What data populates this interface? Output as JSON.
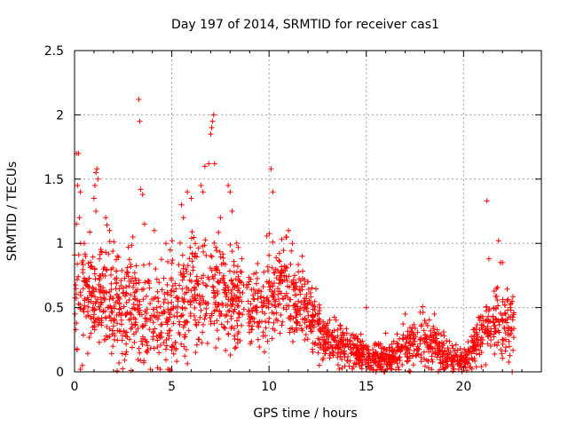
{
  "chart_data": {
    "type": "scatter",
    "title": "Day 197 of 2014, SRMTID for receiver cas1",
    "xlabel": "GPS time / hours",
    "ylabel": "SRMTID / TECUs",
    "xlim": [
      0,
      24
    ],
    "ylim": [
      0,
      2.5
    ],
    "x_ticks": [
      0,
      5,
      10,
      15,
      20
    ],
    "x_tick_labels": [
      "0",
      "5",
      "10",
      "15",
      "20"
    ],
    "y_ticks": [
      0,
      0.5,
      1,
      1.5,
      2,
      2.5
    ],
    "y_tick_labels": [
      "0",
      "0.5",
      "1",
      "1.5",
      "2",
      "2.5"
    ],
    "grid": true,
    "marker": "+",
    "color": "#ff0000",
    "series": [
      {
        "name": "cas1",
        "note": "approximate envelope of the dense point cloud: [hour, typical SRMTID, spread]",
        "envelope": [
          [
            0.0,
            0.55,
            0.45
          ],
          [
            1.0,
            0.6,
            0.45
          ],
          [
            2.0,
            0.55,
            0.45
          ],
          [
            3.0,
            0.5,
            0.45
          ],
          [
            4.0,
            0.4,
            0.4
          ],
          [
            5.0,
            0.5,
            0.45
          ],
          [
            6.0,
            0.6,
            0.5
          ],
          [
            7.0,
            0.65,
            0.5
          ],
          [
            8.0,
            0.55,
            0.4
          ],
          [
            9.0,
            0.5,
            0.35
          ],
          [
            10.0,
            0.6,
            0.4
          ],
          [
            11.0,
            0.55,
            0.4
          ],
          [
            12.0,
            0.45,
            0.3
          ],
          [
            13.0,
            0.25,
            0.2
          ],
          [
            14.0,
            0.2,
            0.18
          ],
          [
            15.0,
            0.12,
            0.12
          ],
          [
            16.0,
            0.1,
            0.1
          ],
          [
            17.0,
            0.18,
            0.18
          ],
          [
            18.0,
            0.25,
            0.22
          ],
          [
            19.0,
            0.15,
            0.15
          ],
          [
            20.0,
            0.08,
            0.08
          ],
          [
            21.0,
            0.3,
            0.25
          ],
          [
            22.0,
            0.4,
            0.3
          ],
          [
            22.5,
            0.35,
            0.25
          ]
        ],
        "points": [
          [
            0.1,
            1.7
          ],
          [
            0.2,
            1.7
          ],
          [
            0.15,
            1.45
          ],
          [
            0.3,
            1.4
          ],
          [
            0.25,
            1.2
          ],
          [
            0.1,
            1.15
          ],
          [
            0.5,
            1.0
          ],
          [
            0.4,
            0.05
          ],
          [
            0.3,
            0.02
          ],
          [
            1.0,
            1.35
          ],
          [
            1.05,
            1.45
          ],
          [
            1.1,
            1.55
          ],
          [
            1.15,
            1.58
          ],
          [
            1.2,
            1.5
          ],
          [
            1.1,
            1.25
          ],
          [
            1.6,
            1.2
          ],
          [
            1.8,
            1.1
          ],
          [
            2.2,
            0.9
          ],
          [
            3.0,
            1.05
          ],
          [
            3.3,
            2.12
          ],
          [
            3.35,
            1.95
          ],
          [
            3.4,
            1.42
          ],
          [
            3.5,
            1.38
          ],
          [
            3.6,
            1.15
          ],
          [
            3.9,
            0.02
          ],
          [
            4.4,
            0.02
          ],
          [
            4.8,
            0.02
          ],
          [
            4.1,
            1.1
          ],
          [
            4.7,
            1.0
          ],
          [
            5.5,
            1.3
          ],
          [
            5.6,
            1.2
          ],
          [
            5.8,
            1.4
          ],
          [
            6.0,
            1.35
          ],
          [
            6.5,
            1.45
          ],
          [
            6.6,
            1.4
          ],
          [
            6.7,
            1.6
          ],
          [
            6.9,
            1.62
          ],
          [
            7.0,
            1.85
          ],
          [
            7.05,
            1.9
          ],
          [
            7.1,
            1.95
          ],
          [
            7.15,
            2.0
          ],
          [
            7.2,
            1.62
          ],
          [
            7.5,
            1.2
          ],
          [
            7.9,
            1.45
          ],
          [
            8.0,
            1.4
          ],
          [
            8.1,
            1.25
          ],
          [
            10.1,
            1.58
          ],
          [
            10.2,
            1.4
          ],
          [
            10.9,
            1.05
          ],
          [
            11.0,
            1.1
          ],
          [
            11.2,
            1.0
          ],
          [
            11.7,
            0.9
          ],
          [
            12.0,
            0.7
          ],
          [
            14.0,
            0.3
          ],
          [
            15.0,
            0.5
          ],
          [
            15.5,
            0.0
          ],
          [
            16.0,
            0.3
          ],
          [
            17.0,
            0.45
          ],
          [
            18.0,
            0.4
          ],
          [
            18.5,
            0.45
          ],
          [
            19.0,
            0.02
          ],
          [
            21.2,
            1.33
          ],
          [
            21.3,
            0.88
          ],
          [
            21.8,
            1.02
          ],
          [
            21.9,
            0.85
          ],
          [
            22.0,
            0.85
          ],
          [
            22.5,
            0.0
          ],
          [
            22.5,
            0.55
          ]
        ]
      }
    ]
  }
}
